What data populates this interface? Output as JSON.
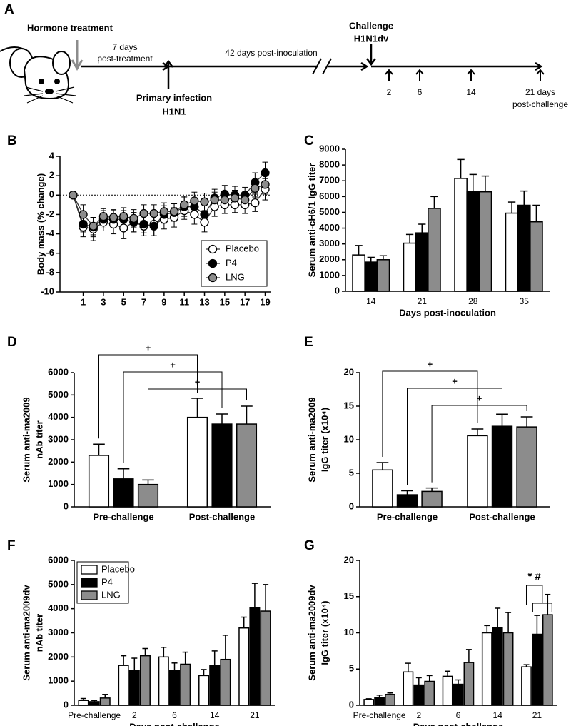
{
  "diagram": {
    "panel": "A",
    "hormone": "Hormone treatment",
    "post_treatment": [
      "7 days",
      "post-treatment"
    ],
    "inoculation": "42 days post-inoculation",
    "challenge": [
      "Challenge",
      "H1N1dv"
    ],
    "primary": [
      "Primary infection",
      "H1N1"
    ],
    "timepoints": [
      "2",
      "6",
      "14",
      "21 days"
    ],
    "post_challenge": "post-challenge"
  },
  "chart_data": [
    {
      "panel": "B",
      "type": "line",
      "ylabel": "Body mass (% change)",
      "x": [
        0,
        1,
        2,
        3,
        4,
        5,
        6,
        7,
        8,
        9,
        10,
        11,
        12,
        13,
        14,
        15,
        16,
        17,
        18,
        19
      ],
      "xlim": [
        -1.3,
        19.6
      ],
      "xticks": [
        1,
        3,
        5,
        7,
        9,
        11,
        13,
        15,
        17,
        19
      ],
      "ylim": [
        -10,
        4
      ],
      "yticks": [
        -10,
        -8,
        -6,
        -4,
        -2,
        0,
        2,
        4
      ],
      "reference_line": 0,
      "legend": "lower right",
      "series": [
        {
          "name": "Placebo",
          "color": "#ffffff",
          "values": [
            0,
            -3.3,
            -3.5,
            -2.8,
            -3.0,
            -3.4,
            -2.8,
            -3.2,
            -3.0,
            -2.5,
            -2.3,
            -1.6,
            -2.0,
            -2.8,
            -1.2,
            -1.0,
            -1.0,
            -1.0,
            -0.8,
            0.6
          ],
          "errors": [
            0,
            1.0,
            1.2,
            0.9,
            1.0,
            1.1,
            1.0,
            1.0,
            1.2,
            1.0,
            1.0,
            0.9,
            1.0,
            1.0,
            1.0,
            0.9,
            0.8,
            0.9,
            0.9,
            1.1
          ]
        },
        {
          "name": "P4",
          "color": "#000000",
          "values": [
            0,
            -3.0,
            -3.3,
            -2.5,
            -2.5,
            -2.5,
            -2.8,
            -3.0,
            -3.2,
            -2.0,
            -1.8,
            -1.2,
            -1.2,
            -2.0,
            -0.3,
            0.1,
            0.0,
            0.0,
            1.3,
            2.3
          ],
          "errors": [
            0,
            0.8,
            1.0,
            0.9,
            0.9,
            0.9,
            1.0,
            0.9,
            1.0,
            0.9,
            0.9,
            1.0,
            0.9,
            1.0,
            0.9,
            0.9,
            0.9,
            0.8,
            1.0,
            1.1
          ]
        },
        {
          "name": "LNG",
          "color": "#8c8c8c",
          "values": [
            0,
            -2.0,
            -3.2,
            -2.2,
            -2.3,
            -2.2,
            -2.4,
            -1.9,
            -1.9,
            -1.7,
            -1.7,
            -1.0,
            -0.6,
            -0.7,
            -0.5,
            -0.5,
            -0.3,
            -0.5,
            0.7,
            1.1
          ],
          "errors": [
            0,
            1.0,
            0.9,
            0.8,
            0.8,
            0.9,
            0.9,
            0.9,
            0.9,
            0.9,
            0.8,
            0.9,
            0.9,
            0.9,
            0.8,
            0.8,
            0.8,
            0.8,
            0.9,
            1.0
          ]
        }
      ]
    },
    {
      "panel": "C",
      "type": "bar",
      "ylabel": "Serum anti-cH6/1 IgG titer",
      "xlabel": "Days post-inoculation",
      "categories": [
        "14",
        "21",
        "28",
        "35"
      ],
      "ylim": [
        0,
        9000
      ],
      "yticks": [
        0,
        1000,
        2000,
        3000,
        4000,
        5000,
        6000,
        7000,
        8000,
        9000
      ],
      "series": [
        {
          "color": "#ffffff",
          "values": [
            2300,
            3050,
            7150,
            4950
          ],
          "errors": [
            600,
            550,
            1200,
            700
          ]
        },
        {
          "color": "#000000",
          "values": [
            1850,
            3700,
            6300,
            5450
          ],
          "errors": [
            300,
            550,
            1100,
            900
          ]
        },
        {
          "color": "#8c8c8c",
          "values": [
            2000,
            5250,
            6300,
            4400
          ],
          "errors": [
            250,
            750,
            1000,
            1050
          ]
        }
      ]
    },
    {
      "panel": "D",
      "type": "bar",
      "ylabel": [
        "Serum anti-ma2009",
        "nAb titer"
      ],
      "categories": [
        "Pre-challenge",
        "Post-challenge"
      ],
      "ylim": [
        0,
        6000
      ],
      "yticks": [
        0,
        1000,
        2000,
        3000,
        4000,
        5000,
        6000
      ],
      "brackets": [
        "+",
        "+",
        "+"
      ],
      "series": [
        {
          "color": "#ffffff",
          "values": [
            2300,
            4000
          ],
          "errors": [
            500,
            850
          ]
        },
        {
          "color": "#000000",
          "values": [
            1250,
            3700
          ],
          "errors": [
            450,
            450
          ]
        },
        {
          "color": "#8c8c8c",
          "values": [
            1000,
            3700
          ],
          "errors": [
            200,
            800
          ]
        }
      ]
    },
    {
      "panel": "E",
      "type": "bar",
      "ylabel": [
        "Serum anti-ma2009",
        "IgG titer (x10⁴)"
      ],
      "categories": [
        "Pre-challenge",
        "Post-challenge"
      ],
      "ylim": [
        0,
        20
      ],
      "yticks": [
        0,
        5,
        10,
        15,
        20
      ],
      "brackets": [
        "+",
        "+",
        "+"
      ],
      "series": [
        {
          "color": "#ffffff",
          "values": [
            5.5,
            10.6
          ],
          "errors": [
            1.1,
            1.0
          ]
        },
        {
          "color": "#000000",
          "values": [
            1.8,
            12.0
          ],
          "errors": [
            0.6,
            1.8
          ]
        },
        {
          "color": "#8c8c8c",
          "values": [
            2.3,
            11.9
          ],
          "errors": [
            0.5,
            1.5
          ]
        }
      ]
    },
    {
      "panel": "F",
      "type": "bar",
      "ylabel": [
        "Serum anti-ma2009dv",
        "nAb titer"
      ],
      "xlabel": "Days post-challenge",
      "categories": [
        "Pre-challenge",
        "2",
        "6",
        "14",
        "21"
      ],
      "ylim": [
        0,
        6000
      ],
      "yticks": [
        0,
        1000,
        2000,
        3000,
        4000,
        5000,
        6000
      ],
      "legend": "upper left",
      "series": [
        {
          "name": "Placebo",
          "color": "#ffffff",
          "values": [
            200,
            1650,
            2000,
            1230,
            3200
          ],
          "errors": [
            80,
            400,
            400,
            250,
            450
          ]
        },
        {
          "name": "P4",
          "color": "#000000",
          "values": [
            150,
            1450,
            1450,
            1650,
            4050
          ],
          "errors": [
            50,
            500,
            300,
            600,
            1000
          ]
        },
        {
          "name": "LNG",
          "color": "#8c8c8c",
          "values": [
            300,
            2050,
            1700,
            1900,
            3900
          ],
          "errors": [
            150,
            300,
            500,
            1000,
            1100
          ]
        }
      ]
    },
    {
      "panel": "G",
      "type": "bar",
      "ylabel": [
        "Serum anti-ma2009dv",
        "IgG titer (x10⁴)"
      ],
      "xlabel": "Days post-challenge",
      "categories": [
        "Pre-challenge",
        "2",
        "6",
        "14",
        "21"
      ],
      "ylim": [
        0,
        20
      ],
      "yticks": [
        0,
        5,
        10,
        15,
        20
      ],
      "annotation": "* #",
      "series": [
        {
          "color": "#ffffff",
          "values": [
            0.8,
            4.6,
            4.0,
            10.0,
            5.3
          ],
          "errors": [
            0.1,
            1.2,
            0.7,
            1.0,
            0.3
          ]
        },
        {
          "color": "#000000",
          "values": [
            1.1,
            2.8,
            2.9,
            10.7,
            9.8
          ],
          "errors": [
            0.3,
            1.0,
            0.6,
            2.7,
            2.6
          ]
        },
        {
          "color": "#8c8c8c",
          "values": [
            1.5,
            3.3,
            5.9,
            10.0,
            12.5
          ],
          "errors": [
            0.2,
            0.8,
            1.8,
            2.8,
            2.8
          ]
        }
      ]
    }
  ]
}
